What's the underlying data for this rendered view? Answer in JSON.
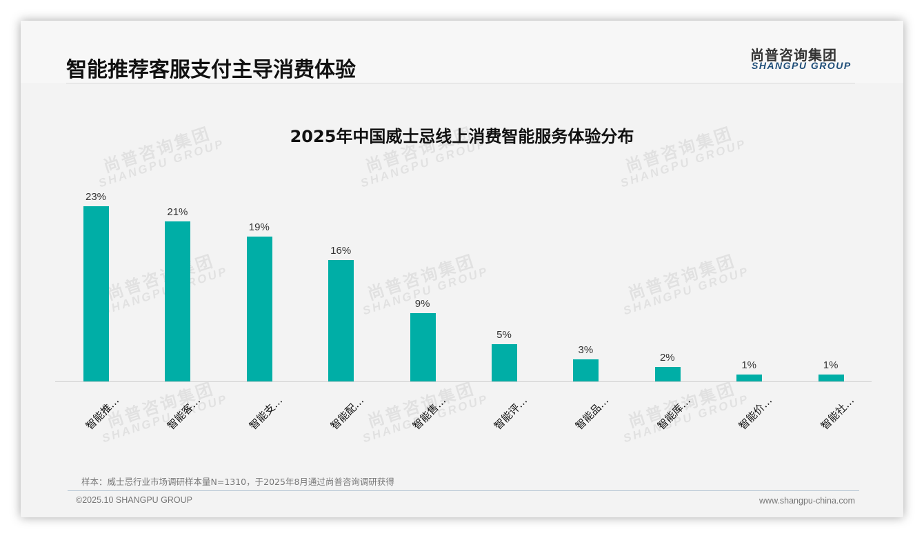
{
  "header": {
    "page_title": "智能推荐客服支付主导消费体验",
    "logo_cn": "尚普咨询集团",
    "logo_en": "SHANGPU GROUP"
  },
  "watermark": {
    "cn": "尚普咨询集团",
    "en": "SHANGPU GROUP"
  },
  "colors": {
    "bar": "#00aea6",
    "logo_en": "#1f4e79"
  },
  "chart_data": {
    "type": "bar",
    "title": "2025年中国威士忌线上消费智能服务体验分布",
    "categories": [
      "智能推…",
      "智能客…",
      "智能支…",
      "智能配…",
      "智能售…",
      "智能评…",
      "智能品…",
      "智能库…",
      "智能价…",
      "智能社…"
    ],
    "values": [
      23,
      21,
      19,
      16,
      9,
      5,
      3,
      2,
      1,
      1
    ],
    "value_labels": [
      "23%",
      "21%",
      "19%",
      "16%",
      "9%",
      "5%",
      "3%",
      "2%",
      "1%",
      "1%"
    ],
    "unit": "%",
    "xlabel": "",
    "ylabel": "",
    "ylim": [
      0,
      25
    ],
    "grid": false,
    "legend": "none"
  },
  "footer": {
    "note": "样本：威士忌行业市场调研样本量N=1310，于2025年8月通过尚普咨询调研获得",
    "copyright": "©2025.10 SHANGPU GROUP",
    "website": "www.shangpu-china.com"
  }
}
